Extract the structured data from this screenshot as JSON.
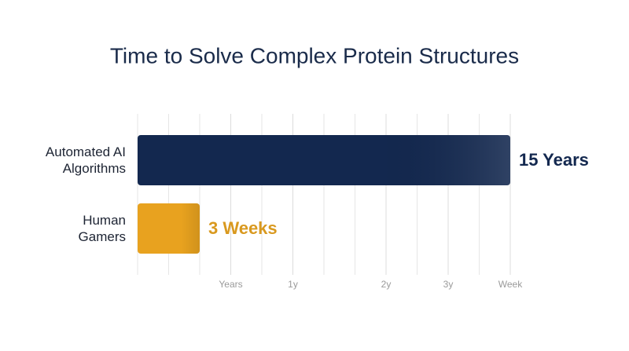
{
  "chart_data": {
    "type": "hbar",
    "title": "Time to Solve Complex Protein Structures",
    "categories": [
      "Automated AI\nAlgorithms",
      "Human\nGamers"
    ],
    "values": [
      12,
      2
    ],
    "value_labels": [
      "15 Years",
      "3 Weeks"
    ],
    "colors": [
      "#13284f",
      "#e8a21f"
    ],
    "label_colors": [
      "#13284f",
      "#d9991f"
    ],
    "xlim": [
      0,
      12
    ],
    "xticks": [
      {
        "value": 3,
        "label": "Years"
      },
      {
        "value": 5,
        "label": "1y"
      },
      {
        "value": 8,
        "label": "2y"
      },
      {
        "value": 10,
        "label": "3y"
      },
      {
        "value": 12,
        "label": "Week"
      }
    ],
    "grid": true
  }
}
